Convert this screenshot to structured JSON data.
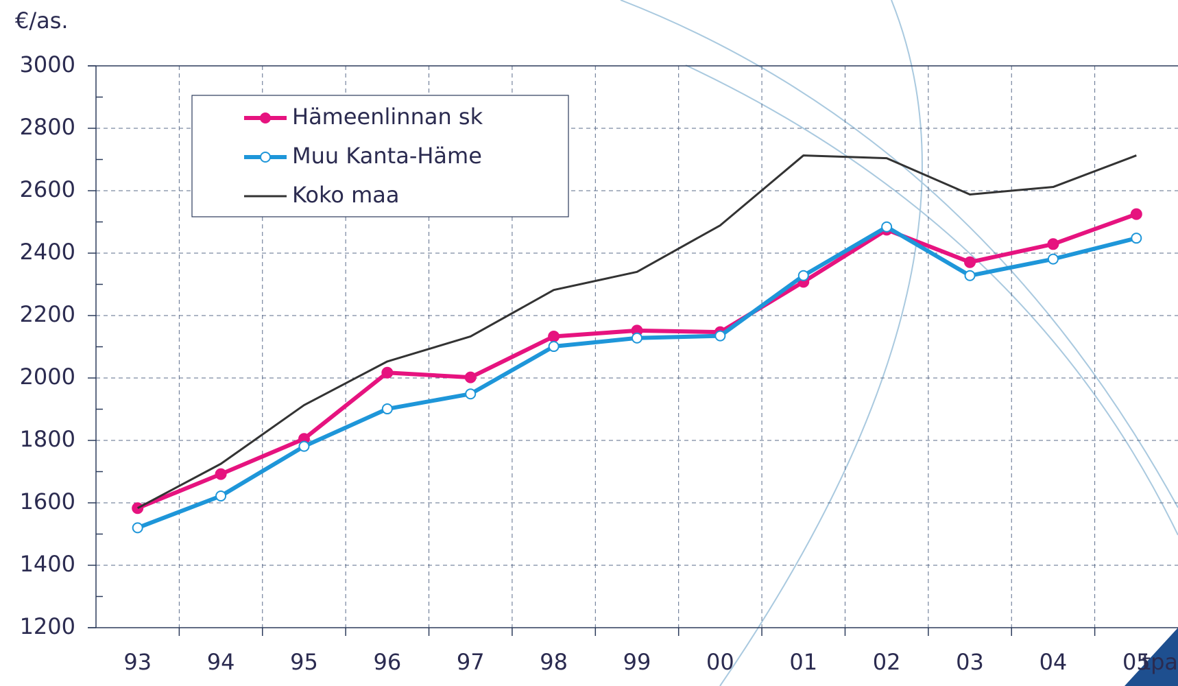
{
  "chart_data": {
    "type": "line",
    "ylabel": "€/as.",
    "xlabel": "tpa",
    "categories": [
      "93",
      "94",
      "95",
      "96",
      "97",
      "98",
      "99",
      "00",
      "01",
      "02",
      "03",
      "04",
      "05"
    ],
    "series": [
      {
        "name": "Hämeenlinnan sk",
        "color": "#e6137f",
        "marker": "filled",
        "values": [
          1583,
          1692,
          1805,
          2017,
          2002,
          2133,
          2152,
          2147,
          2308,
          2475,
          2371,
          2429,
          2525
        ]
      },
      {
        "name": "Muu Kanta-Häme",
        "color": "#1e96d9",
        "marker": "open",
        "values": [
          1520,
          1622,
          1781,
          1901,
          1949,
          2101,
          2128,
          2135,
          2328,
          2484,
          2328,
          2381,
          2448
        ]
      },
      {
        "name": "Koko maa",
        "color": "#333333",
        "marker": "none",
        "values": [
          1583,
          1725,
          1913,
          2053,
          2133,
          2282,
          2340,
          2489,
          2713,
          2704,
          2588,
          2612,
          2713
        ]
      }
    ],
    "ylim": [
      1200,
      3000
    ],
    "yticks": [
      1200,
      1400,
      1600,
      1800,
      2000,
      2200,
      2400,
      2600,
      2800,
      3000
    ],
    "grid": true,
    "legend": "upper left"
  }
}
